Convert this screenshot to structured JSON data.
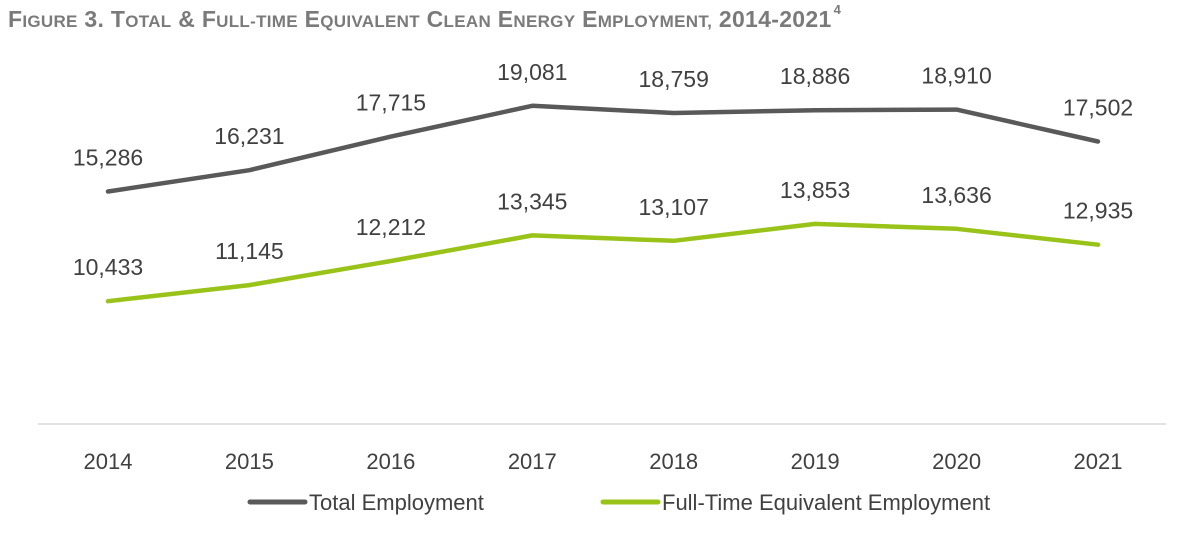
{
  "title": {
    "prefix": "Figure 3. Total & Full-Time Equivalent Clean Energy Employment, 2014-2021",
    "superscript": "4"
  },
  "chart_data": {
    "type": "line",
    "categories": [
      "2014",
      "2015",
      "2016",
      "2017",
      "2018",
      "2019",
      "2020",
      "2021"
    ],
    "series": [
      {
        "name": "Total Employment",
        "color": "#595959",
        "values": [
          15286,
          16231,
          17715,
          19081,
          18759,
          18886,
          18910,
          17502
        ],
        "labels": [
          "15,286",
          "16,231",
          "17,715",
          "19,081",
          "18,759",
          "18,886",
          "18,910",
          "17,502"
        ]
      },
      {
        "name": "Full-Time Equivalent Employment",
        "color": "#9ac319",
        "values": [
          10433,
          11145,
          12212,
          13345,
          13107,
          13853,
          13636,
          12935
        ],
        "labels": [
          "10,433",
          "11,145",
          "12,212",
          "13,345",
          "13,107",
          "13,853",
          "13,636",
          "12,935"
        ]
      }
    ],
    "ylim": [
      5000,
      20000
    ],
    "grid": false,
    "legend_position": "bottom"
  }
}
